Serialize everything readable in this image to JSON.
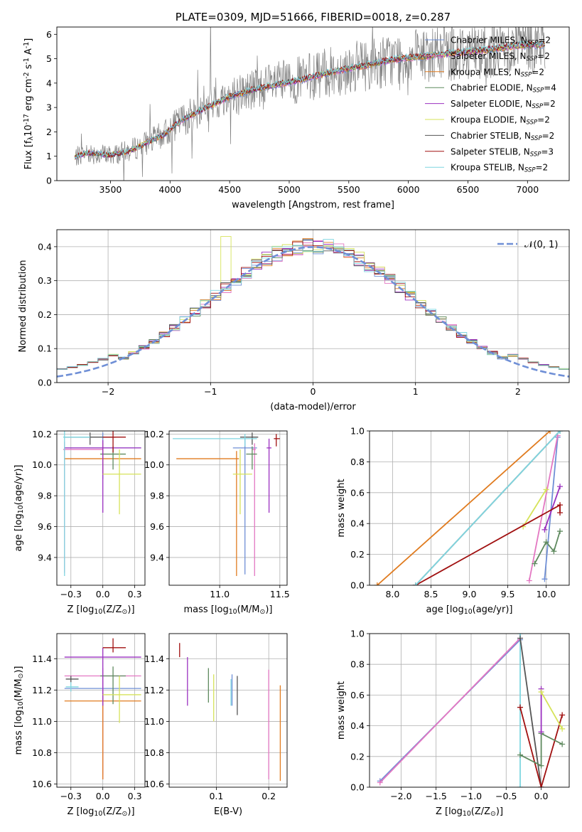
{
  "colors": {
    "Chabrier MILES": "#6f8fd6",
    "Salpeter MILES": "#e377c2",
    "Kroupa MILES": "#e07b1f",
    "Chabrier ELODIE": "#5f8a5f",
    "Salpeter ELODIE": "#9b30c0",
    "Kroupa ELODIE": "#d6e35a",
    "Chabrier STELIB": "#555555",
    "Salpeter STELIB": "#a01010",
    "Kroupa STELIB": "#7fd6e0",
    "data_spectrum": "#808080",
    "normal_curve": "#6f8fd6"
  },
  "chart_data": [
    {
      "id": "spectrum",
      "type": "line",
      "title": "PLATE=0309, MJD=51666, FIBERID=0018, z=0.287",
      "xlabel": "wavelength [Angstrom, rest frame]",
      "ylabel": "Flux [f$_\\lambda$10$^{-17}$ erg cm$^{-2}$ s$^{-1}$ A$^{-1}$]",
      "xlim": [
        3050,
        7350
      ],
      "ylim": [
        0,
        6.3
      ],
      "xticks": [
        3500,
        4000,
        4500,
        5000,
        5500,
        6000,
        6500,
        7000
      ],
      "yticks": [
        0,
        1,
        2,
        3,
        4,
        5,
        6
      ],
      "grid": false,
      "legend": {
        "position": "top-right",
        "entries": [
          {
            "label": "Chabrier MILES, N",
            "sub": "SSP",
            "tail": "=2",
            "model": "Chabrier MILES"
          },
          {
            "label": "Salpeter MILES, N",
            "sub": "SSP",
            "tail": "=2",
            "model": "Salpeter MILES"
          },
          {
            "label": "Kroupa MILES, N",
            "sub": "SSP",
            "tail": "=2",
            "model": "Kroupa MILES"
          },
          {
            "label": "Chabrier ELODIE, N",
            "sub": "SSP",
            "tail": "=4",
            "model": "Chabrier ELODIE"
          },
          {
            "label": "Salpeter ELODIE, N",
            "sub": "SSP",
            "tail": "=2",
            "model": "Salpeter ELODIE"
          },
          {
            "label": "Kroupa ELODIE, N",
            "sub": "SSP",
            "tail": "=2",
            "model": "Kroupa ELODIE"
          },
          {
            "label": "Chabrier STELIB, N",
            "sub": "SSP",
            "tail": "=2",
            "model": "Chabrier STELIB"
          },
          {
            "label": "Salpeter STELIB, N",
            "sub": "SSP",
            "tail": "=3",
            "model": "Salpeter STELIB"
          },
          {
            "label": "Kroupa STELIB, N",
            "sub": "SSP",
            "tail": "=2",
            "model": "Kroupa STELIB"
          }
        ]
      },
      "continuum_knots": {
        "x": [
          3200,
          3300,
          3500,
          3650,
          3800,
          3950,
          4100,
          4300,
          4500,
          4700,
          4900,
          5100,
          5300,
          5500,
          5700,
          5900,
          6100,
          6300,
          6500,
          6700,
          6900,
          7150
        ],
        "y": [
          0.95,
          1.15,
          1.05,
          1.2,
          1.55,
          1.9,
          2.5,
          3.0,
          3.45,
          3.75,
          3.95,
          4.15,
          4.4,
          4.6,
          4.8,
          5.0,
          5.1,
          5.2,
          5.3,
          5.4,
          5.55,
          5.6
        ]
      }
    },
    {
      "id": "residuals",
      "type": "histogram",
      "xlabel": "(data-model)/error",
      "ylabel": "Normed distribution",
      "xlim": [
        -2.5,
        2.5
      ],
      "ylim": [
        0,
        0.45
      ],
      "xticks": [
        -2,
        -1,
        0,
        1,
        2
      ],
      "yticks": [
        0.0,
        0.1,
        0.2,
        0.3,
        0.4
      ],
      "grid": true,
      "legend": {
        "position": "top-right",
        "label": "$\\mathcal{N}(0,1)$",
        "text": "𝒩(0, 1)"
      },
      "bin_width": 0.1
    },
    {
      "id": "age_vs_Z",
      "type": "errorbar",
      "xlabel": "Z [log$_{10}$(Z/Z$_\\odot$)]",
      "ylabel": "age  [log$_{10}$(age/yr)]",
      "xlim": [
        -0.36,
        0.33
      ],
      "ylim": [
        9.22,
        10.22
      ],
      "xticks": [
        -0.25,
        0.0,
        0.25
      ],
      "yticks": [
        9.4,
        9.6,
        9.8,
        10.0,
        10.2
      ],
      "grid": true,
      "points": [
        {
          "model": "Chabrier MILES",
          "x": 0.0,
          "xerr": [
            0.3,
            0.3
          ],
          "y": 10.11,
          "yerr": [
            0.2,
            0.1
          ]
        },
        {
          "model": "Salpeter MILES",
          "x": -0.3,
          "xerr": [
            0.01,
            0.3
          ],
          "y": 10.1,
          "yerr": [
            0.8,
            0.05
          ]
        },
        {
          "model": "Kroupa MILES",
          "x": 0.0,
          "xerr": [
            0.3,
            0.3
          ],
          "y": 10.04,
          "yerr": [
            0.1,
            0.1
          ]
        },
        {
          "model": "Chabrier ELODIE",
          "x": 0.08,
          "xerr": [
            0.1,
            0.1
          ],
          "y": 10.07,
          "yerr": [
            0.1,
            0.05
          ]
        },
        {
          "model": "Salpeter ELODIE",
          "x": 0.0,
          "xerr": [
            0.3,
            0.3
          ],
          "y": 10.11,
          "yerr": [
            0.42,
            0.05
          ]
        },
        {
          "model": "Kroupa ELODIE",
          "x": 0.13,
          "xerr": [
            0.13,
            0.17
          ],
          "y": 9.94,
          "yerr": [
            0.26,
            0.16
          ]
        },
        {
          "model": "Chabrier STELIB",
          "x": -0.1,
          "xerr": [
            0.2,
            0.2
          ],
          "y": 10.18,
          "yerr": [
            0.05,
            0.03
          ]
        },
        {
          "model": "Salpeter STELIB",
          "x": 0.08,
          "xerr": [
            0.08,
            0.1
          ],
          "y": 10.18,
          "yerr": [
            0.1,
            0.04
          ]
        },
        {
          "model": "Kroupa STELIB",
          "x": -0.3,
          "xerr": [
            0.01,
            0.2
          ],
          "y": 10.18,
          "yerr": [
            0.9,
            0.04
          ]
        }
      ]
    },
    {
      "id": "age_vs_mass",
      "type": "errorbar",
      "xlabel": "mass [log$_{10}$(M/M$_\\odot$)]",
      "ylabel": "",
      "xlim": [
        10.58,
        11.56
      ],
      "ylim": [
        9.22,
        10.22
      ],
      "xticks": [
        11.0,
        11.5
      ],
      "yticks": [
        9.4,
        9.6,
        9.8,
        10.0,
        10.2
      ],
      "grid": true,
      "points": [
        {
          "model": "Chabrier MILES",
          "x": 11.21,
          "xerr": [
            0.1,
            0.1
          ],
          "y": 10.11,
          "yerr": [
            0.82,
            0.06
          ]
        },
        {
          "model": "Salpeter MILES",
          "x": 11.29,
          "xerr": [
            0.02,
            0.01
          ],
          "y": 10.1,
          "yerr": [
            0.82,
            0.04
          ]
        },
        {
          "model": "Kroupa MILES",
          "x": 11.14,
          "xerr": [
            0.5,
            0.02
          ],
          "y": 10.04,
          "yerr": [
            0.76,
            0.05
          ]
        },
        {
          "model": "Chabrier ELODIE",
          "x": 11.27,
          "xerr": [
            0.05,
            0.04
          ],
          "y": 10.07,
          "yerr": [
            0.1,
            0.05
          ]
        },
        {
          "model": "Salpeter ELODIE",
          "x": 11.41,
          "xerr": [
            0.02,
            0.02
          ],
          "y": 10.11,
          "yerr": [
            0.42,
            0.06
          ]
        },
        {
          "model": "Kroupa ELODIE",
          "x": 11.17,
          "xerr": [
            0.06,
            0.1
          ],
          "y": 9.94,
          "yerr": [
            0.26,
            0.16
          ]
        },
        {
          "model": "Chabrier STELIB",
          "x": 11.27,
          "xerr": [
            0.1,
            0.05
          ],
          "y": 10.18,
          "yerr": [
            0.05,
            0.03
          ]
        },
        {
          "model": "Salpeter STELIB",
          "x": 11.47,
          "xerr": [
            0.02,
            0.03
          ],
          "y": 10.17,
          "yerr": [
            0.05,
            0.03
          ]
        },
        {
          "model": "Kroupa STELIB",
          "x": 11.21,
          "xerr": [
            0.6,
            0.1
          ],
          "y": 10.17,
          "yerr": [
            0.05,
            0.03
          ]
        }
      ]
    },
    {
      "id": "weight_vs_age",
      "type": "line",
      "xlabel": "age  [log$_{10}$(age/yr)]",
      "ylabel": "mass weight",
      "xlim": [
        7.7,
        10.3
      ],
      "ylim": [
        0,
        1.0
      ],
      "xticks": [
        8.0,
        8.5,
        9.0,
        9.5,
        10.0
      ],
      "yticks": [
        0.0,
        0.2,
        0.4,
        0.6,
        0.8,
        1.0
      ],
      "grid": true,
      "series": [
        {
          "model": "Chabrier MILES",
          "x": [
            9.98,
            10.15
          ],
          "y": [
            0.04,
            0.96
          ]
        },
        {
          "model": "Salpeter MILES",
          "x": [
            9.78,
            10.15
          ],
          "y": [
            0.03,
            0.97
          ]
        },
        {
          "model": "Kroupa MILES",
          "x": [
            7.8,
            10.05
          ],
          "y": [
            0.0,
            1.0
          ]
        },
        {
          "model": "Chabrier ELODIE",
          "x": [
            9.85,
            10.0,
            10.1,
            10.18
          ],
          "y": [
            0.14,
            0.28,
            0.22,
            0.35
          ]
        },
        {
          "model": "Salpeter ELODIE",
          "x": [
            9.98,
            10.18
          ],
          "y": [
            0.36,
            0.64
          ]
        },
        {
          "model": "Kroupa ELODIE",
          "x": [
            9.7,
            10.0
          ],
          "y": [
            0.38,
            0.62
          ]
        },
        {
          "model": "Chabrier STELIB",
          "x": [
            8.3,
            10.18
          ],
          "y": [
            0.0,
            1.0
          ]
        },
        {
          "model": "Salpeter STELIB",
          "x": [
            8.3,
            10.18,
            10.18
          ],
          "y": [
            0.0,
            0.52,
            0.47
          ]
        },
        {
          "model": "Kroupa STELIB",
          "x": [
            8.3,
            10.18
          ],
          "y": [
            0.0,
            1.0
          ]
        }
      ]
    },
    {
      "id": "mass_vs_Z",
      "type": "errorbar",
      "xlabel": "Z [log$_{10}$(Z/Z$_\\odot$)]",
      "ylabel": "mass [log$_{10}$(M/M$_\\odot$)]",
      "xlim": [
        -0.36,
        0.33
      ],
      "ylim": [
        10.58,
        11.56
      ],
      "xticks": [
        -0.25,
        0.0,
        0.25
      ],
      "yticks": [
        10.6,
        10.8,
        11.0,
        11.2,
        11.4
      ],
      "grid": true,
      "points": [
        {
          "model": "Chabrier MILES",
          "x": 0.0,
          "xerr": [
            0.3,
            0.3
          ],
          "y": 11.21,
          "yerr": [
            0.55,
            0.05
          ]
        },
        {
          "model": "Salpeter MILES",
          "x": 0.0,
          "xerr": [
            0.3,
            0.3
          ],
          "y": 11.29,
          "yerr": [
            0.66,
            0.05
          ]
        },
        {
          "model": "Kroupa MILES",
          "x": 0.0,
          "xerr": [
            0.3,
            0.3
          ],
          "y": 11.13,
          "yerr": [
            0.5,
            0.05
          ]
        },
        {
          "model": "Chabrier ELODIE",
          "x": 0.08,
          "xerr": [
            0.1,
            0.1
          ],
          "y": 11.29,
          "yerr": [
            0.18,
            0.06
          ]
        },
        {
          "model": "Salpeter ELODIE",
          "x": 0.0,
          "xerr": [
            0.3,
            0.3
          ],
          "y": 11.41,
          "yerr": [
            0.31,
            0.06
          ]
        },
        {
          "model": "Kroupa ELODIE",
          "x": 0.13,
          "xerr": [
            0.13,
            0.17
          ],
          "y": 11.17,
          "yerr": [
            0.18,
            0.12
          ]
        },
        {
          "model": "Chabrier STELIB",
          "x": -0.25,
          "xerr": [
            0.04,
            0.06
          ],
          "y": 11.27,
          "yerr": [
            0.02,
            0.02
          ]
        },
        {
          "model": "Salpeter STELIB",
          "x": 0.08,
          "xerr": [
            0.08,
            0.1
          ],
          "y": 11.47,
          "yerr": [
            0.03,
            0.06
          ]
        },
        {
          "model": "Kroupa STELIB",
          "x": -0.25,
          "xerr": [
            0.04,
            0.06
          ],
          "y": 11.22,
          "yerr": [
            0.03,
            0.03
          ]
        }
      ]
    },
    {
      "id": "mass_vs_ebv",
      "type": "errorbar",
      "xlabel": "E(B-V)",
      "ylabel": "",
      "xlim": [
        0.01,
        0.235
      ],
      "ylim": [
        10.58,
        11.56
      ],
      "xticks": [
        0.1,
        0.2
      ],
      "yticks": [
        10.6,
        10.8,
        11.0,
        11.2,
        11.4
      ],
      "grid": true,
      "points": [
        {
          "model": "Chabrier MILES",
          "x": 0.13,
          "y": 11.2,
          "yerr": [
            0.1,
            0.1
          ]
        },
        {
          "model": "Salpeter MILES",
          "x": 0.2,
          "y": 11.0,
          "yerr": [
            0.37,
            0.33
          ]
        },
        {
          "model": "Kroupa MILES",
          "x": 0.222,
          "y": 10.93,
          "yerr": [
            0.31,
            0.3
          ]
        },
        {
          "model": "Chabrier ELODIE",
          "x": 0.085,
          "y": 11.2,
          "yerr": [
            0.08,
            0.14
          ]
        },
        {
          "model": "Salpeter ELODIE",
          "x": 0.045,
          "y": 11.2,
          "yerr": [
            0.1,
            0.21
          ]
        },
        {
          "model": "Kroupa ELODIE",
          "x": 0.095,
          "y": 11.15,
          "yerr": [
            0.15,
            0.15
          ]
        },
        {
          "model": "Chabrier STELIB",
          "x": 0.14,
          "y": 11.16,
          "yerr": [
            0.12,
            0.13
          ]
        },
        {
          "model": "Salpeter STELIB",
          "x": 0.03,
          "y": 11.45,
          "yerr": [
            0.04,
            0.05
          ]
        },
        {
          "model": "Kroupa STELIB",
          "x": 0.128,
          "y": 11.18,
          "yerr": [
            0.08,
            0.09
          ]
        }
      ]
    },
    {
      "id": "weight_vs_Z",
      "type": "line",
      "xlabel": "Z [log$_{10}$(Z/Z$_\\odot$)]",
      "ylabel": "mass weight",
      "xlim": [
        -2.45,
        0.4
      ],
      "ylim": [
        0,
        1.0
      ],
      "xticks": [
        -2.0,
        -1.5,
        -1.0,
        -0.5,
        0.0
      ],
      "yticks": [
        0.0,
        0.2,
        0.4,
        0.6,
        0.8,
        1.0
      ],
      "grid": true,
      "series": [
        {
          "model": "Chabrier MILES",
          "x": [
            -2.3,
            -0.3
          ],
          "y": [
            0.04,
            0.96
          ]
        },
        {
          "model": "Salpeter MILES",
          "x": [
            -2.3,
            -0.3
          ],
          "y": [
            0.03,
            0.97
          ]
        },
        {
          "model": "Kroupa STELIB",
          "x": [
            -0.3,
            -0.3
          ],
          "y": [
            0.0,
            1.0
          ]
        },
        {
          "model": "Chabrier STELIB",
          "x": [
            -0.3,
            0.0
          ],
          "y": [
            0.97,
            0.0
          ]
        },
        {
          "model": "Salpeter STELIB",
          "x": [
            -0.3,
            0.0,
            0.3
          ],
          "y": [
            0.52,
            0.0,
            0.47
          ]
        },
        {
          "model": "Chabrier ELODIE",
          "x": [
            -0.3,
            0.0,
            0.0,
            0.3
          ],
          "y": [
            0.21,
            0.14,
            0.35,
            0.28
          ]
        },
        {
          "model": "Salpeter ELODIE",
          "x": [
            0.0,
            0.0
          ],
          "y": [
            0.36,
            0.64
          ]
        },
        {
          "model": "Kroupa ELODIE",
          "x": [
            0.0,
            0.3
          ],
          "y": [
            0.62,
            0.38
          ]
        }
      ]
    }
  ]
}
